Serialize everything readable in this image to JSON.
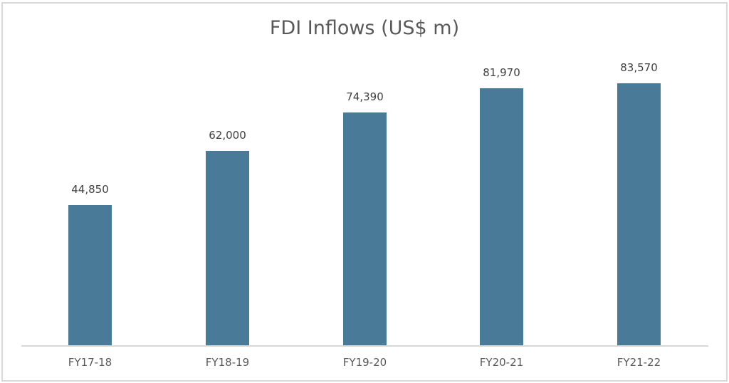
{
  "chart_data": {
    "type": "bar",
    "title": "FDI Inflows (US$ m)",
    "categories": [
      "FY17-18",
      "FY18-19",
      "FY19-20",
      "FY20-21",
      "FY21-22"
    ],
    "values": [
      44850,
      62000,
      74390,
      81970,
      83570
    ],
    "value_labels": [
      "44,850",
      "62,000",
      "74,390",
      "81,970",
      "83,570"
    ],
    "xlabel": "",
    "ylabel": "",
    "ylim": [
      0,
      90000
    ],
    "grid": false,
    "legend": "none",
    "bar_color": "#497a98"
  }
}
